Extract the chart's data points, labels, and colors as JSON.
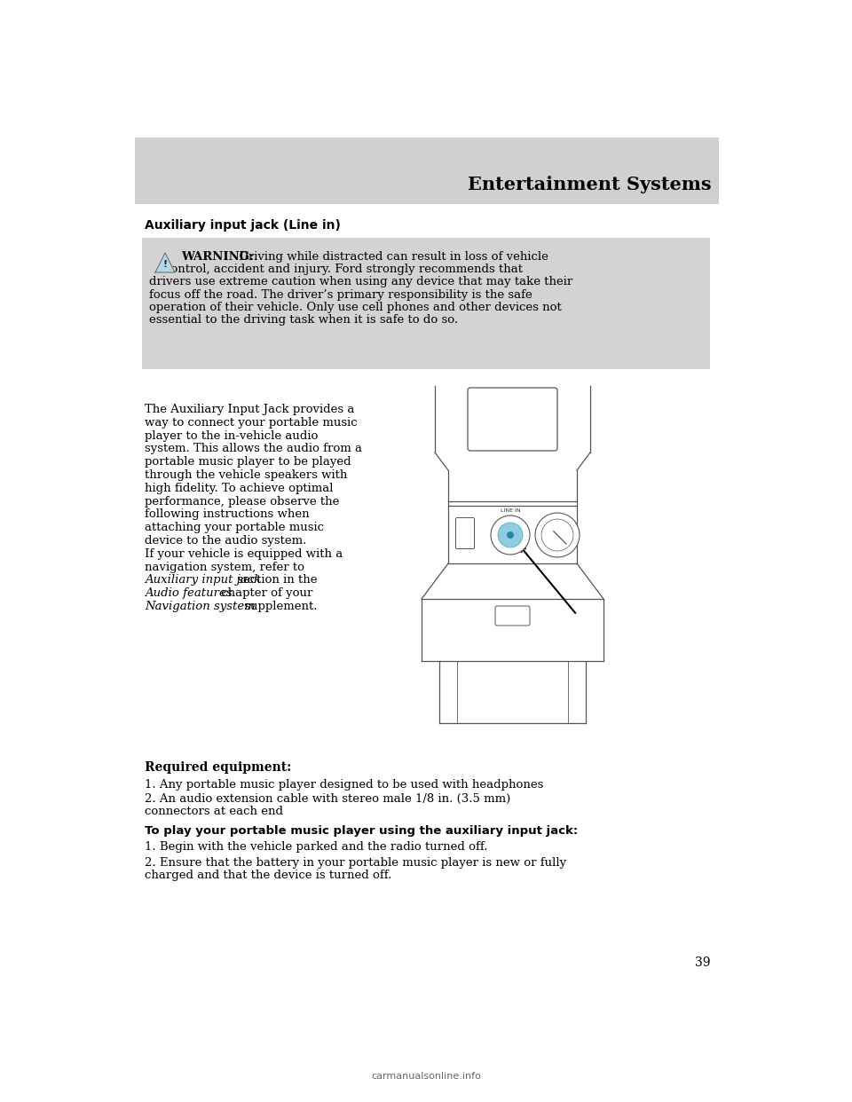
{
  "page_bg": "#ffffff",
  "header_bg": "#d3d3d3",
  "header_text": "Entertainment Systems",
  "header_text_color": "#000000",
  "header_fontsize": 15,
  "section_title": "Auxiliary input jack (Line in)",
  "warning_title": "WARNING:",
  "warn_line1": " Driving while distracted can result in loss of vehicle",
  "warn_line2": "    control, accident and injury. Ford strongly recommends that",
  "warn_line3": "drivers use extreme caution when using any device that may take their",
  "warn_line4": "focus off the road. The driver’s primary responsibility is the safe",
  "warn_line5": "operation of their vehicle. Only use cell phones and other devices not",
  "warn_line6": "essential to the driving task when it is safe to do so.",
  "body_lines": [
    "The Auxiliary Input Jack provides a",
    "way to connect your portable music",
    "player to the in-vehicle audio",
    "system. This allows the audio from a",
    "portable music player to be played",
    "through the vehicle speakers with",
    "high fidelity. To achieve optimal",
    "performance, please observe the",
    "following instructions when",
    "attaching your portable music",
    "device to the audio system.",
    "If your vehicle is equipped with a",
    "navigation system, refer to"
  ],
  "italic1": "Auxiliary input jack",
  "normal1": " section in the",
  "italic2": "Audio features",
  "normal2": " chapter of your",
  "italic3": "Navigation system",
  "normal3": " supplement.",
  "required_title": "Required equipment:",
  "req1": "1. Any portable music player designed to be used with headphones",
  "req2a": "2. An audio extension cable with stereo male 1/8 in. (3.5 mm)",
  "req2b": "connectors at each end",
  "play_title": "To play your portable music player using the auxiliary input jack:",
  "play1": "1. Begin with the vehicle parked and the radio turned off.",
  "play2a": "2. Ensure that the battery in your portable music player is new or fully",
  "play2b": "charged and that the device is turned off.",
  "page_number": "39",
  "footer_text": "carmanualsonline.info"
}
